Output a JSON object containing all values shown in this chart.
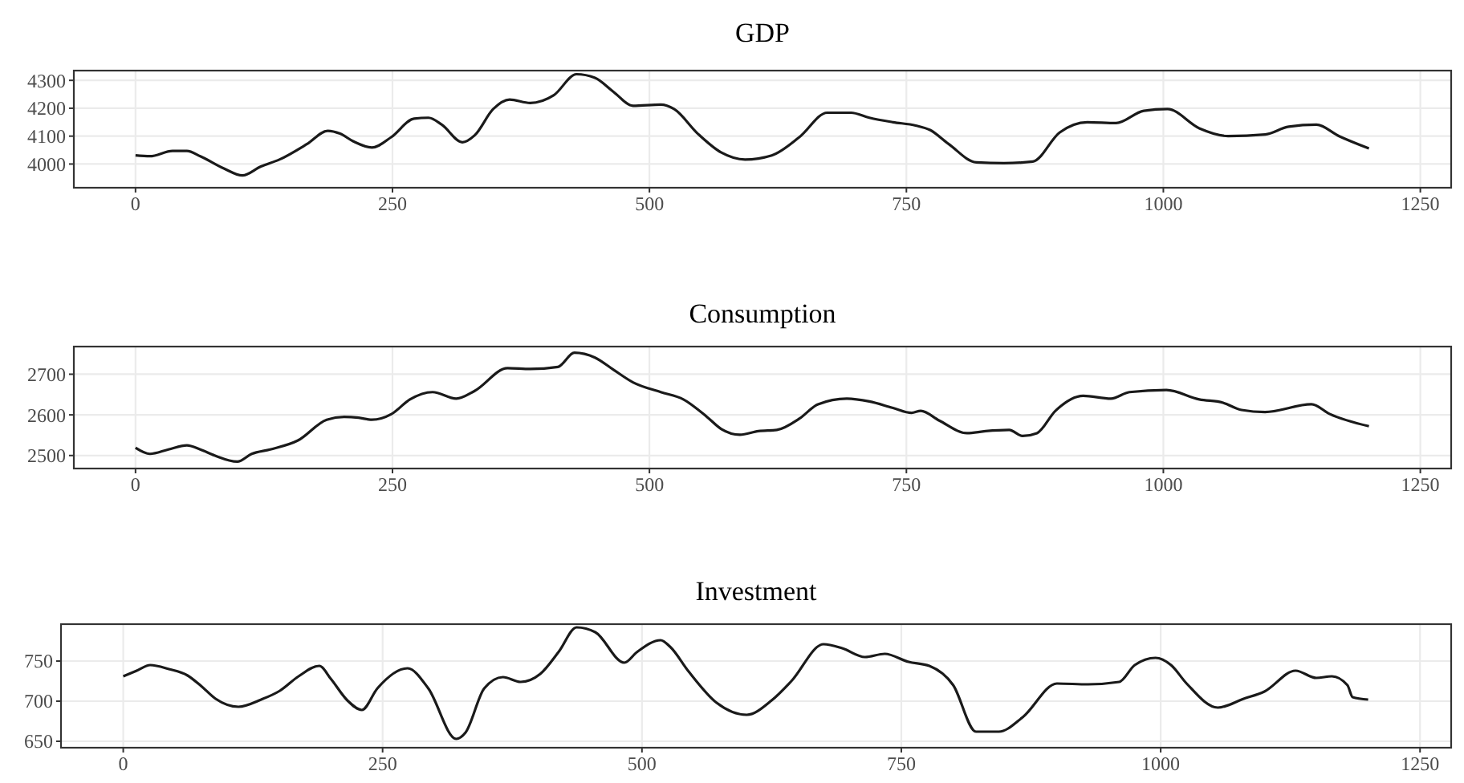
{
  "chart_data": [
    {
      "type": "line",
      "title": "GDP",
      "xlim": [
        -60,
        1280
      ],
      "xticks": [
        0,
        250,
        500,
        750,
        1000,
        1250
      ],
      "ylim": [
        3915,
        4335
      ],
      "yticks": [
        4000,
        4100,
        4200,
        4300
      ],
      "grid": true,
      "line_style": "solid",
      "series": [
        {
          "color": "#1a1a1a",
          "x": [
            0,
            14,
            36,
            50,
            63,
            86,
            104,
            122,
            140,
            167,
            187,
            199,
            212,
            230,
            249,
            271,
            285,
            298,
            318,
            330,
            348,
            364,
            384,
            407,
            429,
            447,
            465,
            484,
            511,
            524,
            547,
            570,
            593,
            619,
            646,
            673,
            696,
            714,
            737,
            759,
            773,
            791,
            818,
            845,
            873,
            899,
            926,
            954,
            981,
            1004,
            1035,
            1063,
            1099,
            1122,
            1149,
            1171,
            1200
          ],
          "values": [
            4031,
            4028,
            4047,
            4047,
            4028,
            3984,
            3959,
            3991,
            4016,
            4072,
            4119,
            4109,
            4081,
            4059,
            4097,
            4163,
            4166,
            4141,
            4078,
            4103,
            4197,
            4231,
            4219,
            4247,
            4322,
            4309,
            4259,
            4209,
            4213,
            4197,
            4109,
            4041,
            4016,
            4031,
            4097,
            4184,
            4184,
            4166,
            4150,
            4138,
            4122,
            4072,
            4006,
            4003,
            4009,
            4113,
            4150,
            4147,
            4191,
            4197,
            4128,
            4100,
            4106,
            4134,
            4141,
            4100,
            4056
          ]
        }
      ]
    },
    {
      "type": "line",
      "title": "Consumption",
      "xlim": [
        -60,
        1280
      ],
      "xticks": [
        0,
        250,
        500,
        750,
        1000,
        1250
      ],
      "ylim": [
        2468,
        2768
      ],
      "yticks": [
        2500,
        2600,
        2700
      ],
      "grid": true,
      "line_style": "solid",
      "series": [
        {
          "color": "#1a1a1a",
          "x": [
            0,
            14,
            32,
            50,
            63,
            77,
            99,
            113,
            131,
            158,
            186,
            203,
            217,
            230,
            249,
            267,
            289,
            312,
            330,
            362,
            384,
            411,
            427,
            447,
            465,
            484,
            511,
            533,
            556,
            570,
            588,
            606,
            624,
            646,
            664,
            692,
            714,
            737,
            755,
            764,
            782,
            809,
            827,
            850,
            863,
            877,
            895,
            922,
            949,
            967,
            1003,
            1035,
            1058,
            1076,
            1099,
            1144,
            1162,
            1200
          ],
          "values": [
            2519,
            2504,
            2515,
            2525,
            2515,
            2500,
            2485,
            2504,
            2515,
            2537,
            2588,
            2595,
            2593,
            2588,
            2602,
            2638,
            2656,
            2640,
            2659,
            2715,
            2713,
            2718,
            2753,
            2741,
            2711,
            2680,
            2656,
            2638,
            2595,
            2565,
            2551,
            2560,
            2563,
            2591,
            2626,
            2640,
            2633,
            2617,
            2605,
            2610,
            2586,
            2555,
            2560,
            2563,
            2548,
            2555,
            2610,
            2647,
            2640,
            2656,
            2661,
            2638,
            2630,
            2612,
            2607,
            2626,
            2602,
            2572
          ]
        }
      ]
    },
    {
      "type": "line",
      "title": "Investment",
      "xlim": [
        -60,
        1280
      ],
      "xticks": [
        0,
        250,
        500,
        750,
        1000,
        1250
      ],
      "ylim": [
        642,
        796
      ],
      "yticks": [
        650,
        700,
        750
      ],
      "grid": true,
      "line_style": "solid",
      "series": [
        {
          "color": "#1a1a1a",
          "x": [
            0,
            13,
            26,
            44,
            62,
            75,
            89,
            111,
            133,
            151,
            169,
            189,
            200,
            216,
            230,
            245,
            274,
            294,
            321,
            330,
            348,
            366,
            383,
            402,
            420,
            437,
            455,
            483,
            495,
            518,
            527,
            545,
            572,
            601,
            625,
            644,
            675,
            693,
            715,
            734,
            757,
            777,
            800,
            822,
            844,
            867,
            900,
            930,
            960,
            975,
            995,
            1010,
            1025,
            1055,
            1080,
            1100,
            1130,
            1150,
            1165,
            1180,
            1185,
            1200
          ],
          "values": [
            731,
            738,
            745,
            740,
            732,
            719,
            703,
            693,
            702,
            713,
            731,
            744,
            728,
            701,
            689,
            716,
            741,
            716,
            653,
            661,
            716,
            730,
            724,
            734,
            762,
            792,
            786,
            748,
            761,
            776,
            768,
            737,
            698,
            683,
            701,
            725,
            771,
            766,
            755,
            759,
            749,
            744,
            720,
            662,
            662,
            680,
            722,
            721,
            724,
            745,
            754,
            745,
            722,
            692,
            703,
            712,
            738,
            729,
            731,
            720,
            705,
            702
          ]
        }
      ]
    }
  ]
}
